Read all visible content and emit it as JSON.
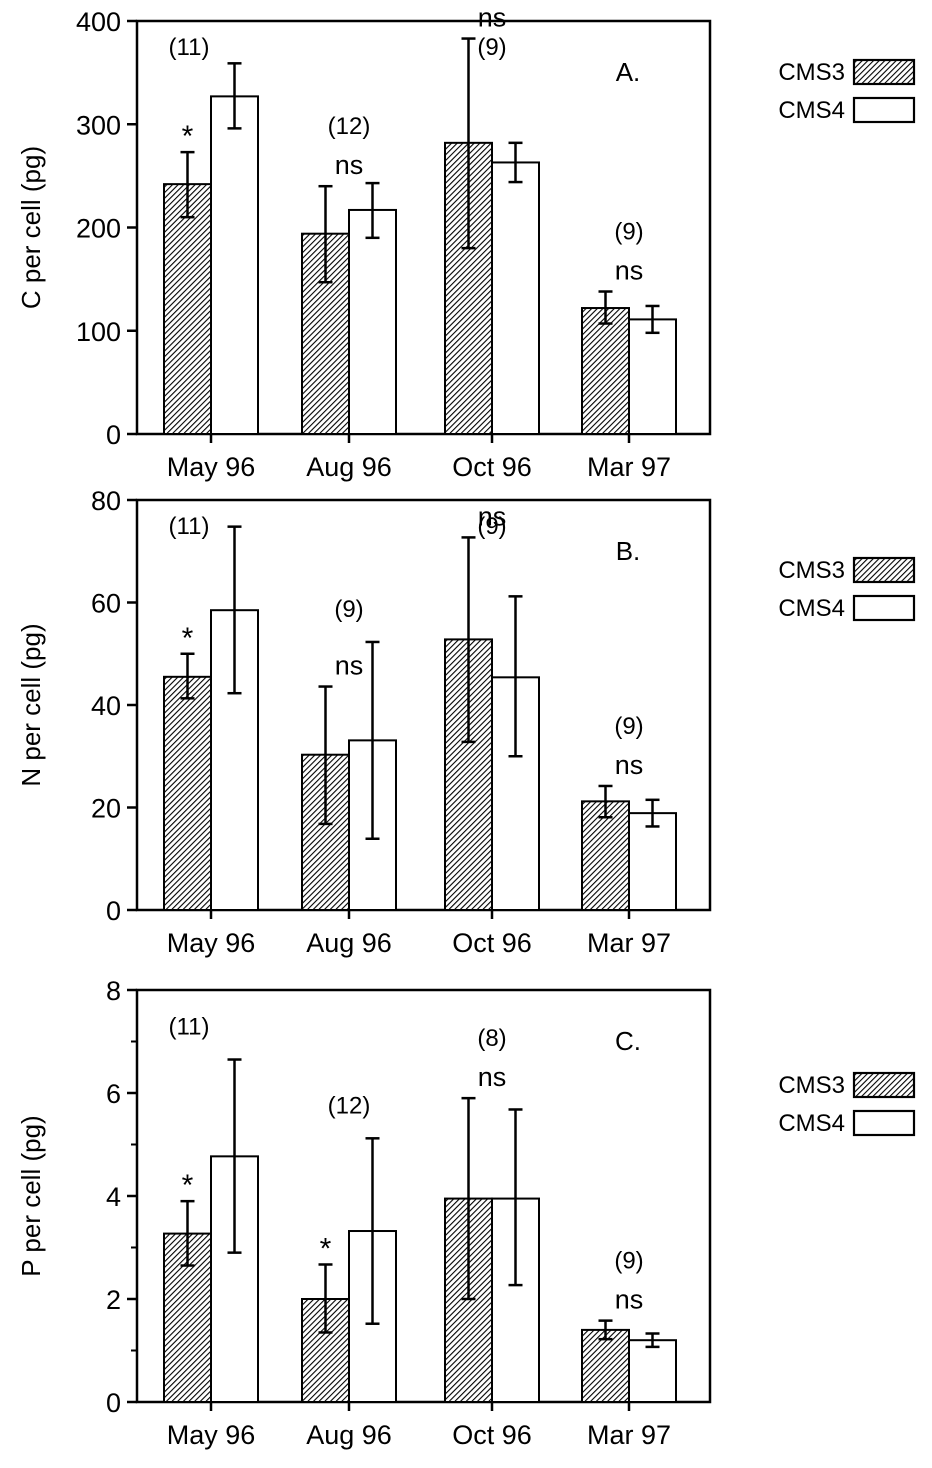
{
  "chart_data": [
    {
      "type": "bar",
      "panel_label": "A.",
      "ylabel": "C per cell (pg)",
      "ylim": [
        0,
        400
      ],
      "yticks": [
        0,
        100,
        200,
        300,
        400
      ],
      "categories": [
        "May 96",
        "Aug 96",
        "Oct 96",
        "Mar 97"
      ],
      "series": [
        {
          "name": "CMS3",
          "values": [
            242,
            194,
            282,
            122
          ],
          "err_low": [
            210,
            147,
            180,
            107
          ],
          "err_high": [
            273,
            240,
            383,
            138
          ]
        },
        {
          "name": "CMS4",
          "values": [
            327,
            217,
            263,
            111
          ],
          "err_low": [
            296,
            190,
            244,
            98
          ],
          "err_high": [
            359,
            243,
            282,
            124
          ]
        }
      ],
      "annotations": [
        {
          "n": "(11)",
          "sig": "*"
        },
        {
          "n": "(12)",
          "sig": "ns"
        },
        {
          "n": "(9)",
          "sig": "ns"
        },
        {
          "n": "(9)",
          "sig": "ns"
        }
      ],
      "legend": "right"
    },
    {
      "type": "bar",
      "panel_label": "B.",
      "ylabel": "N per cell (pg)",
      "ylim": [
        0,
        80
      ],
      "yticks": [
        0,
        20,
        40,
        60,
        80
      ],
      "categories": [
        "May 96",
        "Aug 96",
        "Oct 96",
        "Mar 97"
      ],
      "series": [
        {
          "name": "CMS3",
          "values": [
            45.5,
            30.3,
            52.8,
            21.2
          ],
          "err_low": [
            41.3,
            16.8,
            32.8,
            18.1
          ],
          "err_high": [
            50.0,
            43.6,
            72.7,
            24.2
          ]
        },
        {
          "name": "CMS4",
          "values": [
            58.5,
            33.1,
            45.4,
            18.9
          ],
          "err_low": [
            42.3,
            13.9,
            30.0,
            16.3
          ],
          "err_high": [
            74.8,
            52.3,
            61.2,
            21.5
          ]
        }
      ],
      "annotations": [
        {
          "n": "(11)",
          "sig": "*"
        },
        {
          "n": "(9)",
          "sig": "ns"
        },
        {
          "n": "(9)",
          "sig": "ns"
        },
        {
          "n": "(9)",
          "sig": "ns"
        }
      ],
      "legend": "right"
    },
    {
      "type": "bar",
      "panel_label": "C.",
      "ylabel": "P per cell (pg)",
      "ylim": [
        0,
        8
      ],
      "yticks": [
        0,
        2,
        4,
        6,
        8
      ],
      "minor_ticks": true,
      "categories": [
        "May 96",
        "Aug 96",
        "Oct 96",
        "Mar 97"
      ],
      "series": [
        {
          "name": "CMS3",
          "values": [
            3.27,
            2.0,
            3.95,
            1.4
          ],
          "err_low": [
            2.65,
            1.35,
            2.0,
            1.22
          ],
          "err_high": [
            3.9,
            2.67,
            5.9,
            1.58
          ]
        },
        {
          "name": "CMS4",
          "values": [
            4.77,
            3.32,
            3.95,
            1.2
          ],
          "err_low": [
            2.9,
            1.52,
            2.27,
            1.07
          ],
          "err_high": [
            6.65,
            5.12,
            5.68,
            1.33
          ]
        }
      ],
      "annotations": [
        {
          "n": "(11)",
          "sig": "*"
        },
        {
          "n": "(12)",
          "sig": "*"
        },
        {
          "n": "(8)",
          "sig": "ns"
        },
        {
          "n": "(9)",
          "sig": "ns"
        }
      ],
      "legend": "right"
    }
  ]
}
